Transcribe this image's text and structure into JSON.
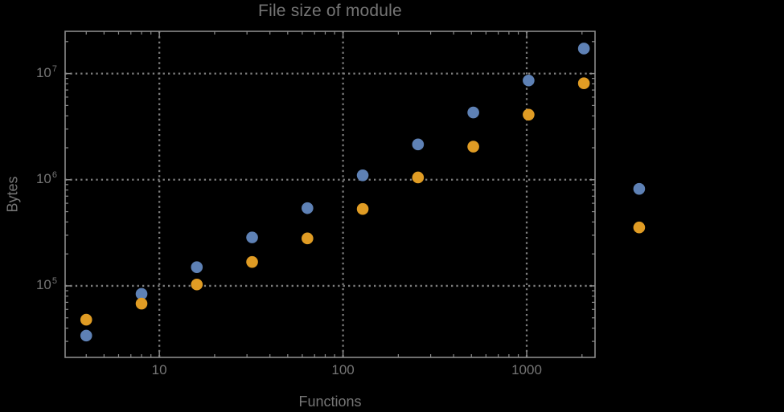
{
  "window": {
    "background": "#000000"
  },
  "chart_data": {
    "type": "scatter",
    "title": "File size of module",
    "xlabel": "Functions",
    "ylabel": "Bytes",
    "xscale": "log",
    "yscale": "log",
    "xlim": [
      3.07,
      2355
    ],
    "ylim": [
      21200,
      25000000
    ],
    "grid": {
      "style": "dotted",
      "x_values": [
        10,
        100,
        1000
      ],
      "y_values": [
        100000,
        1000000,
        10000000
      ]
    },
    "legend": "none",
    "marker_radius_px": 7.3,
    "x": [
      4,
      8,
      16,
      32,
      64,
      128,
      256,
      512,
      1024,
      2048,
      4096
    ],
    "series": [
      {
        "name": "series-1",
        "color": "#5e81b5",
        "values": [
          34000,
          84000,
          150000,
          286000,
          540000,
          1100000,
          2150000,
          4300000,
          8600000,
          17200000,
          820000
        ]
      },
      {
        "name": "series-2",
        "color": "#e09c24",
        "values": [
          48000,
          68000,
          103000,
          168000,
          280000,
          530000,
          1050000,
          2050000,
          4100000,
          8100000,
          355000
        ]
      }
    ],
    "x_ticks": [
      {
        "value": 10,
        "label": "10"
      },
      {
        "value": 100,
        "label": "100"
      },
      {
        "value": 1000,
        "label": "1000"
      }
    ],
    "y_ticks": [
      {
        "value": 100000,
        "base": "10",
        "exp": "5"
      },
      {
        "value": 1000000,
        "base": "10",
        "exp": "6"
      },
      {
        "value": 10000000,
        "base": "10",
        "exp": "7"
      }
    ],
    "colors": {
      "frame": "#8b8b8b",
      "grid": "#7d7d7d",
      "text": "#757575"
    }
  }
}
